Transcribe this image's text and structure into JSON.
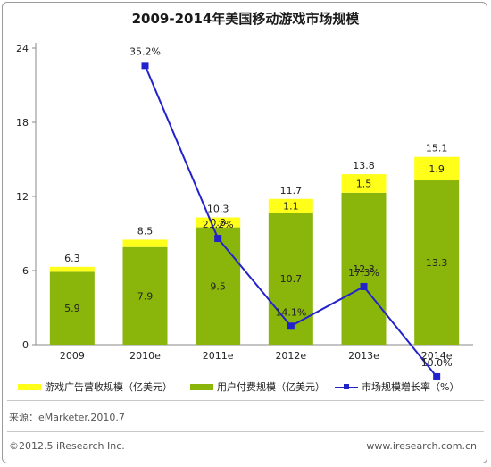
{
  "title": "2009-2014年美国移动游戏市场规模",
  "source": "来源：eMarketer.2010.7",
  "copyright": "©2012.5 iResearch Inc.",
  "website": "www.iresearch.com.cn",
  "legend": {
    "ads": "游戏广告营收规模（亿美元）",
    "user_pay": "用户付费规模（亿美元）",
    "growth": "市场规模增长率（%）"
  },
  "colors": {
    "ads": "#ffff1a",
    "user_pay": "#8ab60c",
    "growth": "#2222cc"
  },
  "chart_data": {
    "type": "bar",
    "stacked": true,
    "title": "2009-2014年美国移动游戏市场规模",
    "categories": [
      "2009",
      "2010e",
      "2011e",
      "2012e",
      "2013e",
      "2014e"
    ],
    "series": [
      {
        "name": "用户付费规模（亿美元）",
        "values": [
          5.9,
          7.9,
          9.5,
          10.7,
          12.3,
          13.3
        ]
      },
      {
        "name": "游戏广告营收规模（亿美元）",
        "values": [
          0.4,
          0.6,
          0.8,
          1.1,
          1.5,
          1.9
        ]
      }
    ],
    "totals": [
      6.3,
      8.5,
      10.3,
      11.7,
      13.8,
      15.1
    ],
    "line_series": {
      "name": "市场规模增长率（%）",
      "values": [
        null,
        35.2,
        21.2,
        14.1,
        17.3,
        10.0
      ],
      "labels": [
        "",
        "35.2%",
        "21.2%",
        "14.1%",
        "17.3%",
        "10.0%"
      ]
    },
    "y_ticks": [
      "0",
      "6",
      "12",
      "18",
      "24"
    ],
    "ylim": [
      0,
      24
    ],
    "ad_labels_shown": [
      false,
      false,
      true,
      true,
      true,
      true
    ],
    "grid": false,
    "legend_position": "bottom"
  }
}
